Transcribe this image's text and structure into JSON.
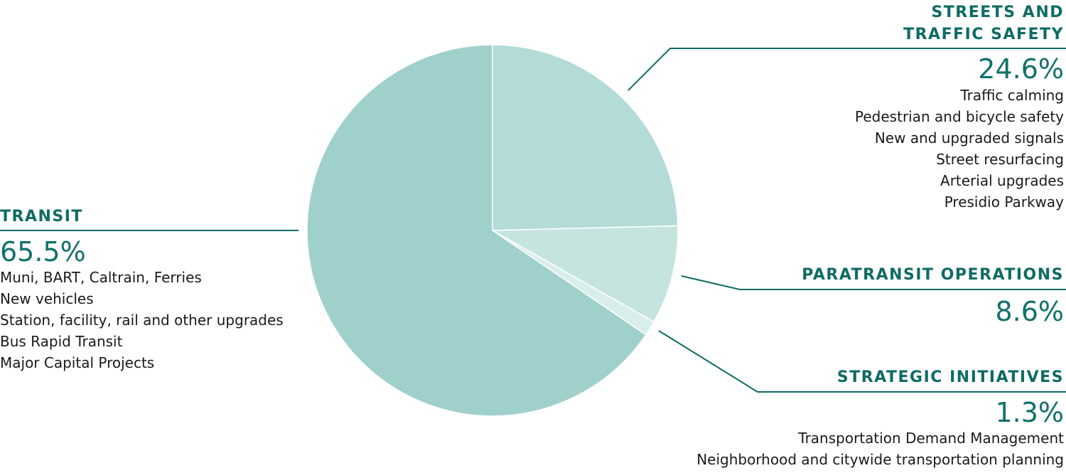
{
  "colors": {
    "accent": "#0f6b64",
    "slice_transit": "#a0d0cb",
    "slice_streets": "#b3dbd7",
    "slice_paratransit": "#c5e4e0",
    "slice_strategic": "#d9eeeb",
    "leader": "#0f6b64"
  },
  "chart_data": {
    "type": "pie",
    "slices": [
      {
        "label": "STREETS AND TRAFFIC SAFETY",
        "value": 24.6,
        "percent_label": "24.6%",
        "color": "#b3dbd7"
      },
      {
        "label": "PARATRANSIT OPERATIONS",
        "value": 8.6,
        "percent_label": "8.6%",
        "color": "#c5e4e0"
      },
      {
        "label": "STRATEGIC INITIATIVES",
        "value": 1.3,
        "percent_label": "1.3%",
        "color": "#d9eeeb"
      },
      {
        "label": "TRANSIT",
        "value": 65.5,
        "percent_label": "65.5%",
        "color": "#a0d0cb"
      }
    ]
  },
  "streets": {
    "title_line1": "STREETS AND",
    "title_line2": "TRAFFIC SAFETY",
    "percent": "24.6%",
    "items": [
      "Traffic calming",
      "Pedestrian and bicycle safety",
      "New and upgraded signals",
      "Street resurfacing",
      "Arterial upgrades",
      "Presidio Parkway"
    ]
  },
  "transit": {
    "title": "TRANSIT",
    "percent": "65.5%",
    "items": [
      "Muni, BART, Caltrain, Ferries",
      "New vehicles",
      "Station, facility, rail and other upgrades",
      "Bus Rapid Transit",
      "Major Capital Projects"
    ]
  },
  "paratransit": {
    "title": "PARATRANSIT OPERATIONS",
    "percent": "8.6%"
  },
  "strategic": {
    "title": "STRATEGIC INITIATIVES",
    "percent": "1.3%",
    "items": [
      "Transportation Demand Management",
      "Neighborhood and citywide transportation planning"
    ]
  }
}
